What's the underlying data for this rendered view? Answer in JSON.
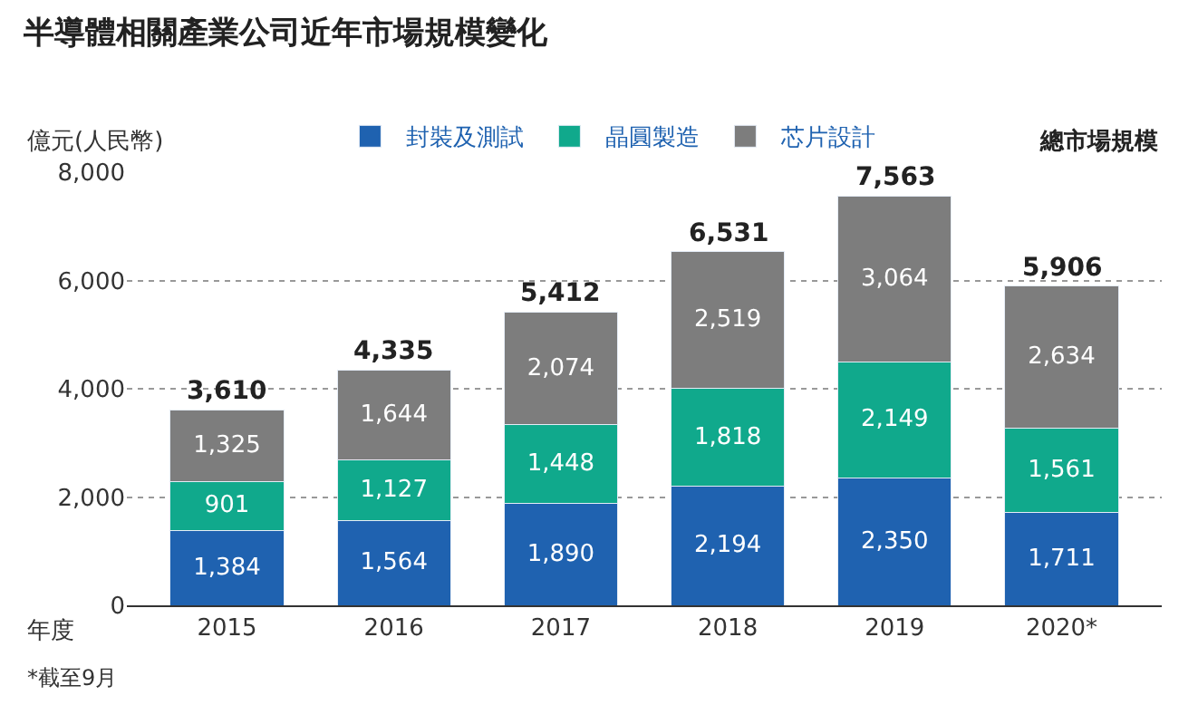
{
  "chart_data": {
    "type": "bar",
    "title": "半導體相關產業公司近年市場規模變化",
    "ylabel": "億元(人民幣)",
    "xlabel": "年度",
    "stacked": true,
    "categories": [
      "2015",
      "2016",
      "2017",
      "2018",
      "2019",
      "2020*"
    ],
    "series": [
      {
        "name": "封裝及測試",
        "color": "#1f62b0",
        "values": [
          1384,
          1564,
          1890,
          2194,
          2350,
          1711
        ],
        "value_labels": [
          "1,384",
          "1,564",
          "1,890",
          "2,194",
          "2,350",
          "1,711"
        ]
      },
      {
        "name": "晶圓製造",
        "color": "#10a98c",
        "values": [
          901,
          1127,
          1448,
          1818,
          2149,
          1561
        ],
        "value_labels": [
          "901",
          "1,127",
          "1,448",
          "1,818",
          "2,149",
          "1,561"
        ]
      },
      {
        "name": "芯片設計",
        "color": "#7d7d7d",
        "values": [
          1325,
          1644,
          2074,
          2519,
          3064,
          2634
        ],
        "value_labels": [
          "1,325",
          "1,644",
          "2,074",
          "2,519",
          "3,064",
          "2,634"
        ]
      }
    ],
    "totals": [
      "3,610",
      "4,335",
      "5,412",
      "6,531",
      "7,563",
      "5,906"
    ],
    "ylim": [
      0,
      8000
    ],
    "yticks": [
      0,
      {
        "value": 2000,
        "label": "2,000"
      },
      {
        "value": 4000,
        "label": "4,000"
      },
      {
        "value": 6000,
        "label": "6,000"
      },
      {
        "value": 8000,
        "label": "8,000"
      }
    ],
    "grid": "y",
    "legend": "top",
    "annotations": [
      "總市場規模",
      "*截至9月"
    ]
  }
}
